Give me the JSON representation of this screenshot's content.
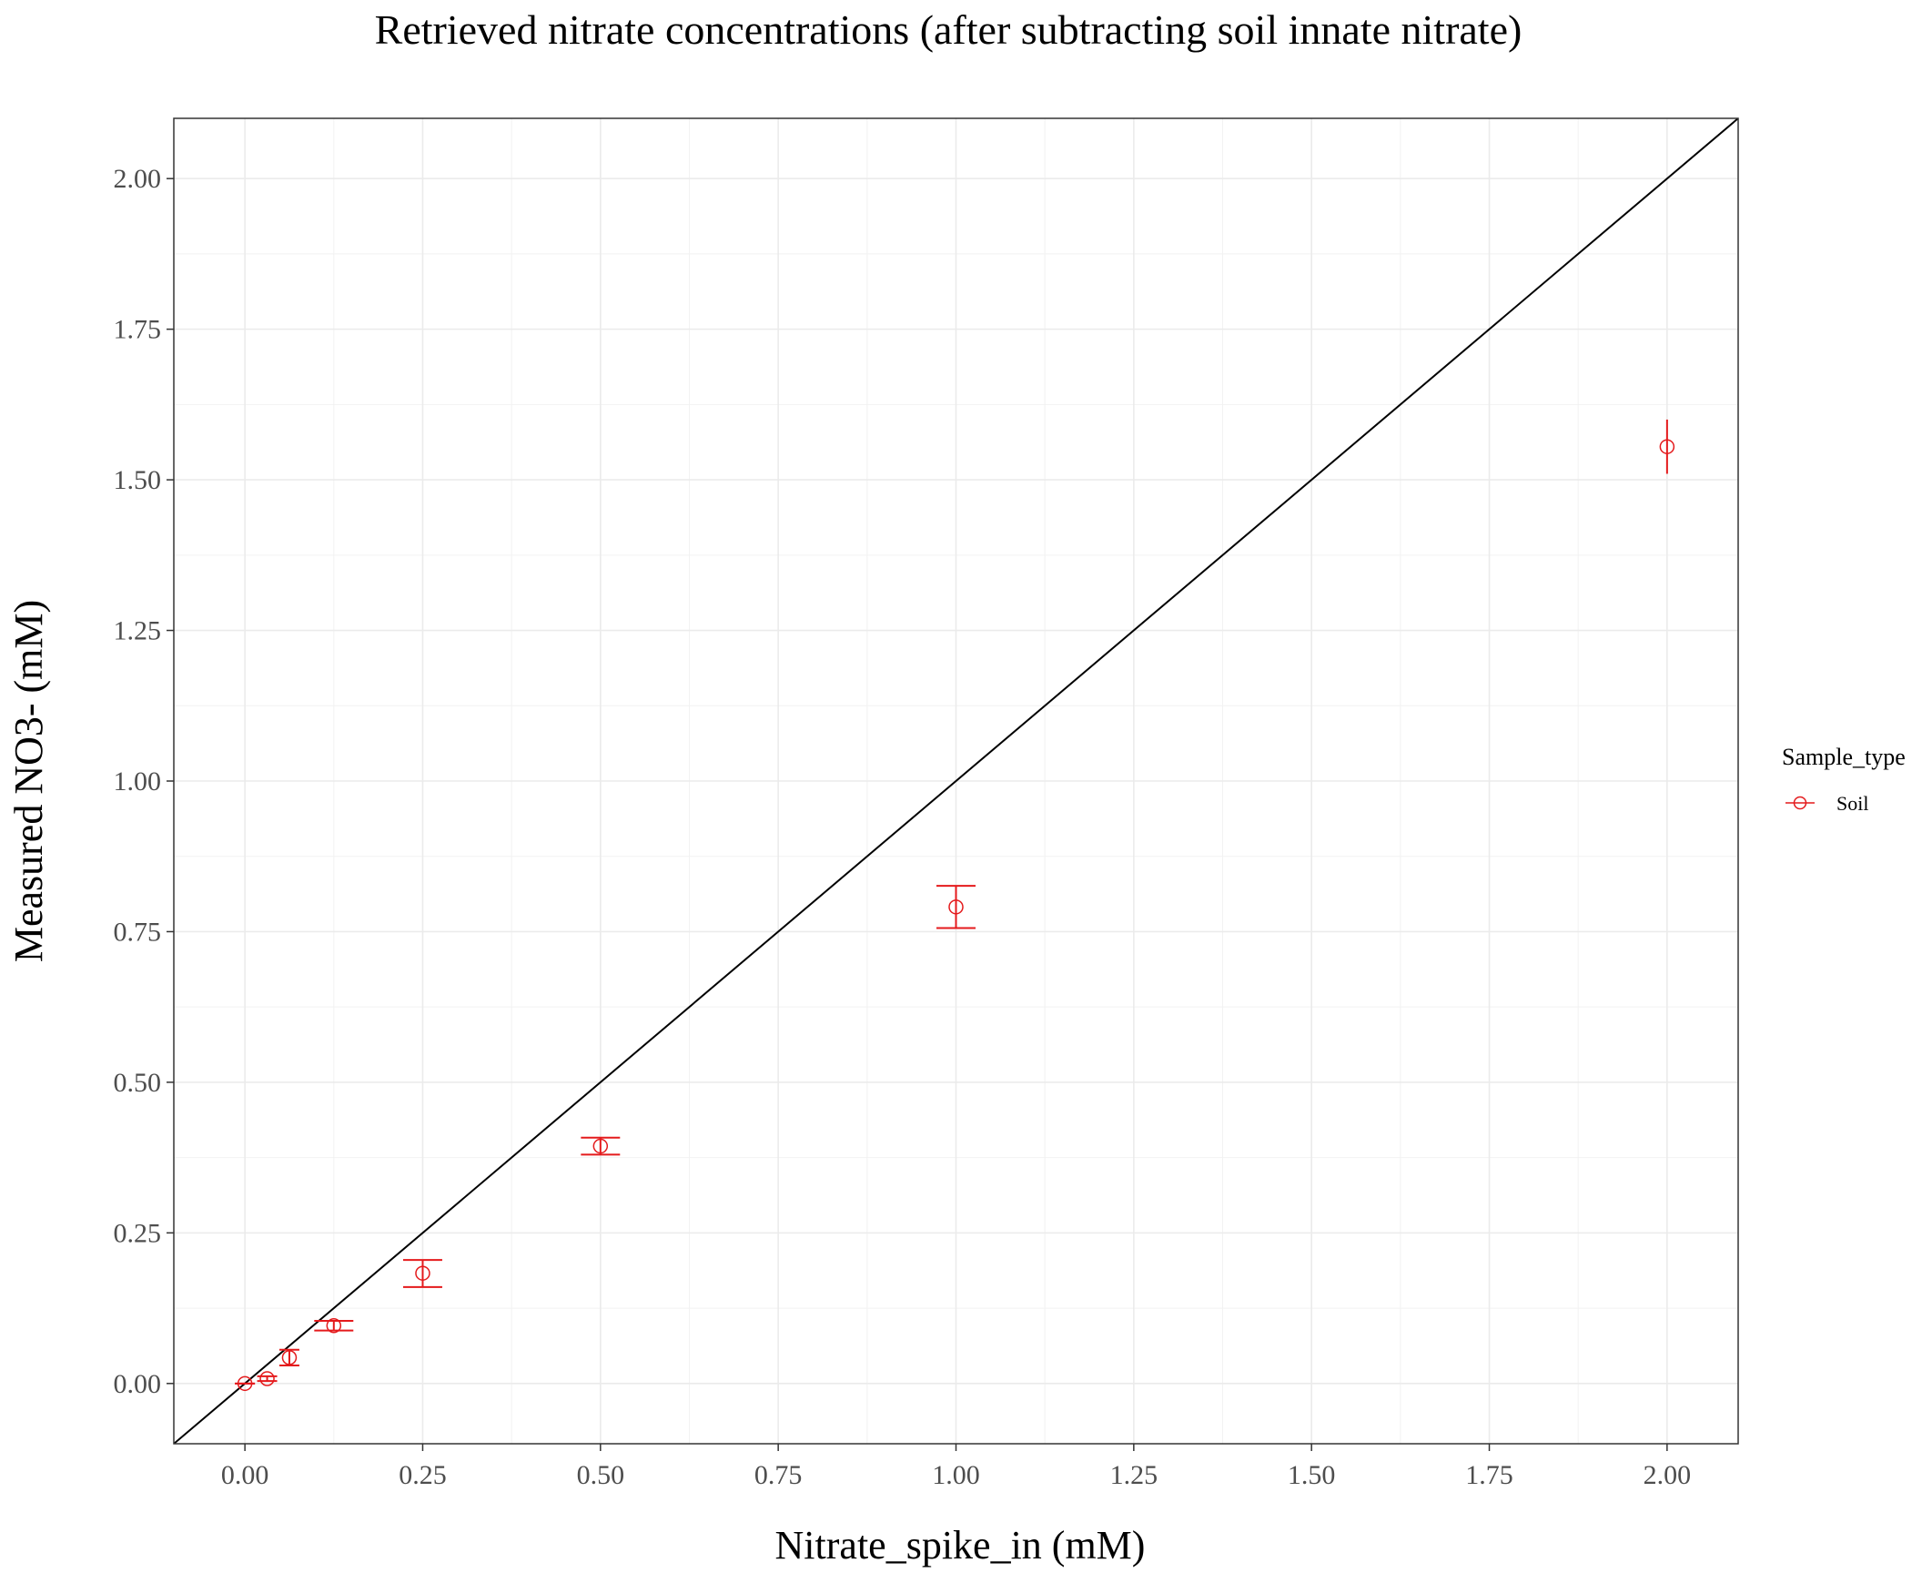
{
  "chart_data": {
    "type": "scatter",
    "title": "Retrieved nitrate concentrations (after subtracting soil innate nitrate)",
    "xlabel": "Nitrate_spike_in (mM)",
    "ylabel": "Measured NO3- (mM)",
    "xlim": [
      -0.1,
      2.1
    ],
    "ylim": [
      -0.1,
      2.1
    ],
    "x_ticks": [
      0.0,
      0.25,
      0.5,
      0.75,
      1.0,
      1.25,
      1.5,
      1.75,
      2.0
    ],
    "x_tick_labels": [
      "0.00",
      "0.25",
      "0.50",
      "0.75",
      "1.00",
      "1.25",
      "1.50",
      "1.75",
      "2.00"
    ],
    "y_ticks": [
      0.0,
      0.25,
      0.5,
      0.75,
      1.0,
      1.25,
      1.5,
      1.75,
      2.0
    ],
    "y_tick_labels": [
      "0.00",
      "0.25",
      "0.50",
      "0.75",
      "1.00",
      "1.25",
      "1.50",
      "1.75",
      "2.00"
    ],
    "grid": true,
    "reference_line": {
      "slope": 1,
      "intercept": 0,
      "color": "#000000"
    },
    "legend": {
      "title": "Sample_type",
      "placement": "right"
    },
    "series": [
      {
        "name": "Soil",
        "color": "#e41a1c",
        "marker": "open-circle",
        "points": [
          {
            "x": 0.0,
            "y": 0.0,
            "ymin": 0.0,
            "ymax": 0.0
          },
          {
            "x": 0.03125,
            "y": 0.008,
            "ymin": 0.004,
            "ymax": 0.012
          },
          {
            "x": 0.0625,
            "y": 0.043,
            "ymin": 0.03,
            "ymax": 0.056
          },
          {
            "x": 0.125,
            "y": 0.096,
            "ymin": 0.088,
            "ymax": 0.104
          },
          {
            "x": 0.25,
            "y": 0.183,
            "ymin": 0.16,
            "ymax": 0.205
          },
          {
            "x": 0.5,
            "y": 0.394,
            "ymin": 0.38,
            "ymax": 0.408
          },
          {
            "x": 1.0,
            "y": 0.791,
            "ymin": 0.756,
            "ymax": 0.826
          },
          {
            "x": 2.0,
            "y": 1.555,
            "ymin": 1.51,
            "ymax": 1.6
          }
        ]
      }
    ]
  }
}
